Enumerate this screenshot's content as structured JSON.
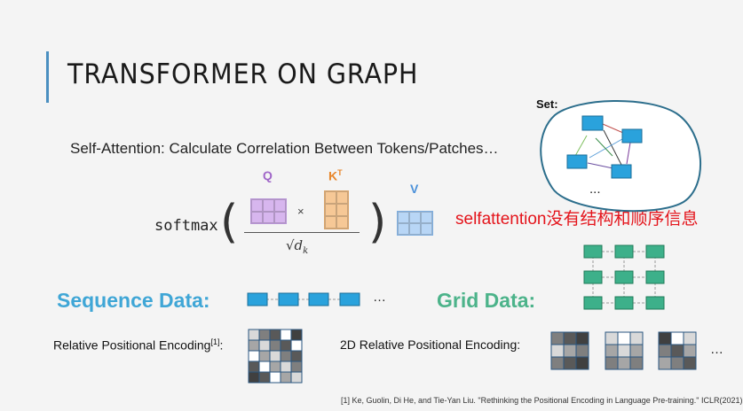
{
  "slide": {
    "title": "TRANSFORMER ON GRAPH",
    "subtitle": "Self-Attention: Calculate Correlation Between Tokens/Patches…",
    "softmax_label": "softmax",
    "q_label": "Q",
    "k_label": "K",
    "k_sup": "T",
    "v_label": "V",
    "times_symbol": "×",
    "sqrt_label": "√d",
    "sqrt_sub": "k",
    "set_label": "Set:",
    "set_ellipsis": "...",
    "note": "selfattention没有结构和顺序信息",
    "sequence_title": "Sequence Data:",
    "sequence_ellipsis": "…",
    "grid_title": "Grid Data:",
    "rpe_label": "Relative Positional Encoding",
    "rpe_sup": "[1]",
    "rpe_colon": ":",
    "rpe2d_label": "2D Relative Positional Encoding:",
    "rpe2d_ellipsis": "…",
    "reference": "[1] Ke, Guolin, Di He, and Tie-Yan Liu. \"Rethinking the Positional Encoding in Language Pre-training.\" ICLR(2021)"
  },
  "colors": {
    "accent_bar": "#4a8fc0",
    "q_color": "#a066c8",
    "k_color": "#e8862a",
    "v_color": "#4a90d9",
    "sequence_title": "#3fa6d6",
    "grid_title": "#4cb38a",
    "note": "#e4141b",
    "token_blue": "#2aa2dc",
    "token_green": "#3db08a"
  },
  "icons": [
    "matrix-q-icon",
    "matrix-k-icon",
    "matrix-v-icon",
    "set-graph-icon",
    "sequence-chain-icon",
    "grid-graph-icon",
    "relative-pe-matrix-icon",
    "2d-pe-matrix-icon"
  ]
}
